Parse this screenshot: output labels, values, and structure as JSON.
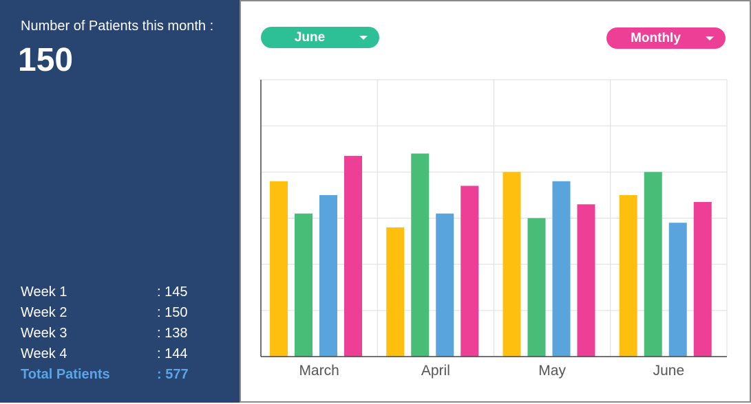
{
  "summary": {
    "title": "Number of Patients this month :",
    "value": "150",
    "weeks": [
      {
        "label": "Week 1",
        "value": ": 145"
      },
      {
        "label": "Week 2",
        "value": ": 150"
      },
      {
        "label": "Week 3",
        "value": ": 138"
      },
      {
        "label": "Week 4",
        "value": ": 144"
      }
    ],
    "total": {
      "label": "Total Patients",
      "value": ": 577"
    }
  },
  "controls": {
    "month_select": "June",
    "period_select": "Monthly"
  },
  "colors": {
    "panel_bg": "#284470",
    "total_text": "#5aa5e6",
    "month_pill": "#2dbf95",
    "period_pill": "#ec3f95"
  },
  "chart_data": {
    "type": "bar",
    "categories": [
      "March",
      "April",
      "May",
      "June"
    ],
    "series": [
      {
        "color": "#ffbf0f",
        "values": [
          3.8,
          2.8,
          4.0,
          3.5
        ]
      },
      {
        "color": "#47bd78",
        "values": [
          3.1,
          4.4,
          3.0,
          4.0
        ]
      },
      {
        "color": "#59a4dc",
        "values": [
          3.5,
          3.1,
          3.8,
          2.9
        ]
      },
      {
        "color": "#ec3f95",
        "values": [
          4.35,
          3.7,
          3.3,
          3.35
        ]
      }
    ],
    "ylim": [
      0,
      6
    ],
    "grid": true,
    "legend": "none",
    "xlabel": "",
    "ylabel": ""
  }
}
